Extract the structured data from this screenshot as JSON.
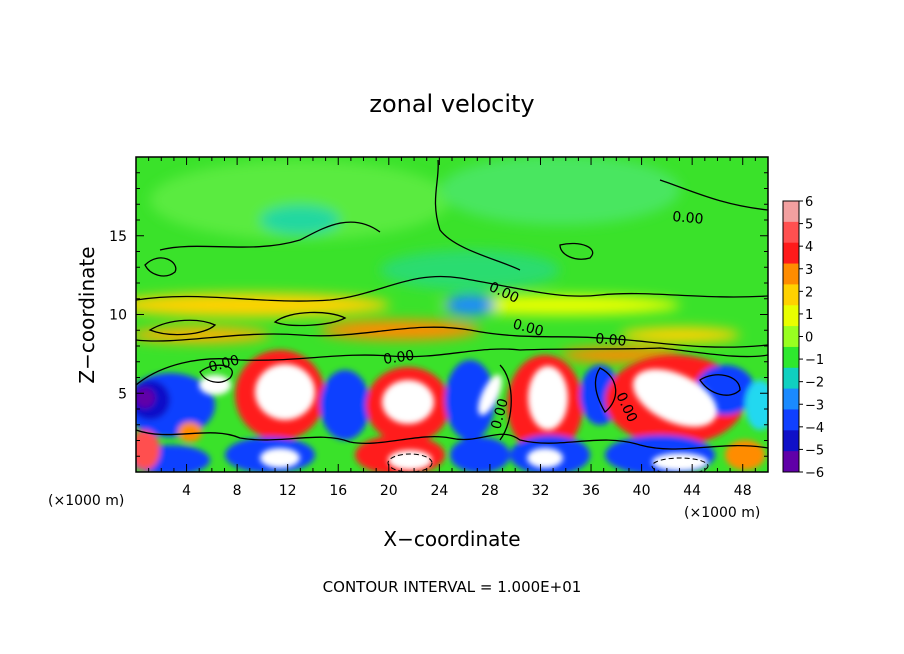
{
  "chart_data": {
    "type": "heatmap",
    "title": "zonal velocity",
    "xlabel": "X−coordinate",
    "ylabel": "Z−coordinate",
    "x_unit_left": "(×1000 m)",
    "x_unit_right": "(×1000 m)",
    "xlim": [
      0,
      50
    ],
    "ylim": [
      0,
      20
    ],
    "xticks": [
      4,
      8,
      12,
      16,
      20,
      24,
      28,
      32,
      36,
      40,
      44,
      48
    ],
    "yticks": [
      5,
      10,
      15
    ],
    "colorbar": {
      "ticks": [
        6,
        5,
        4,
        3,
        2,
        1,
        0,
        -1,
        -2,
        -3,
        -4,
        -5,
        -6
      ],
      "tick_labels": [
        "6",
        "5",
        "4",
        "3",
        "2",
        "1",
        "0",
        "−1",
        "−2",
        "−3",
        "−4",
        "−5",
        "−6"
      ],
      "colors": [
        "#f2a0a0",
        "#ff5050",
        "#ff1a1a",
        "#ff8c00",
        "#ffd200",
        "#e8ff00",
        "#98ff20",
        "#2ee82e",
        "#10d0c0",
        "#1a8aff",
        "#1040ff",
        "#1010c8",
        "#6000a8"
      ],
      "range": [
        -6,
        6
      ]
    },
    "contour_labels": [
      "0.00",
      "0.00",
      "0.00",
      "0.00",
      "0.00",
      "0.00",
      "0.00",
      "0.00",
      "0.00"
    ],
    "contour_interval_text": "CONTOUR INTERVAL = 1.000E+01"
  }
}
